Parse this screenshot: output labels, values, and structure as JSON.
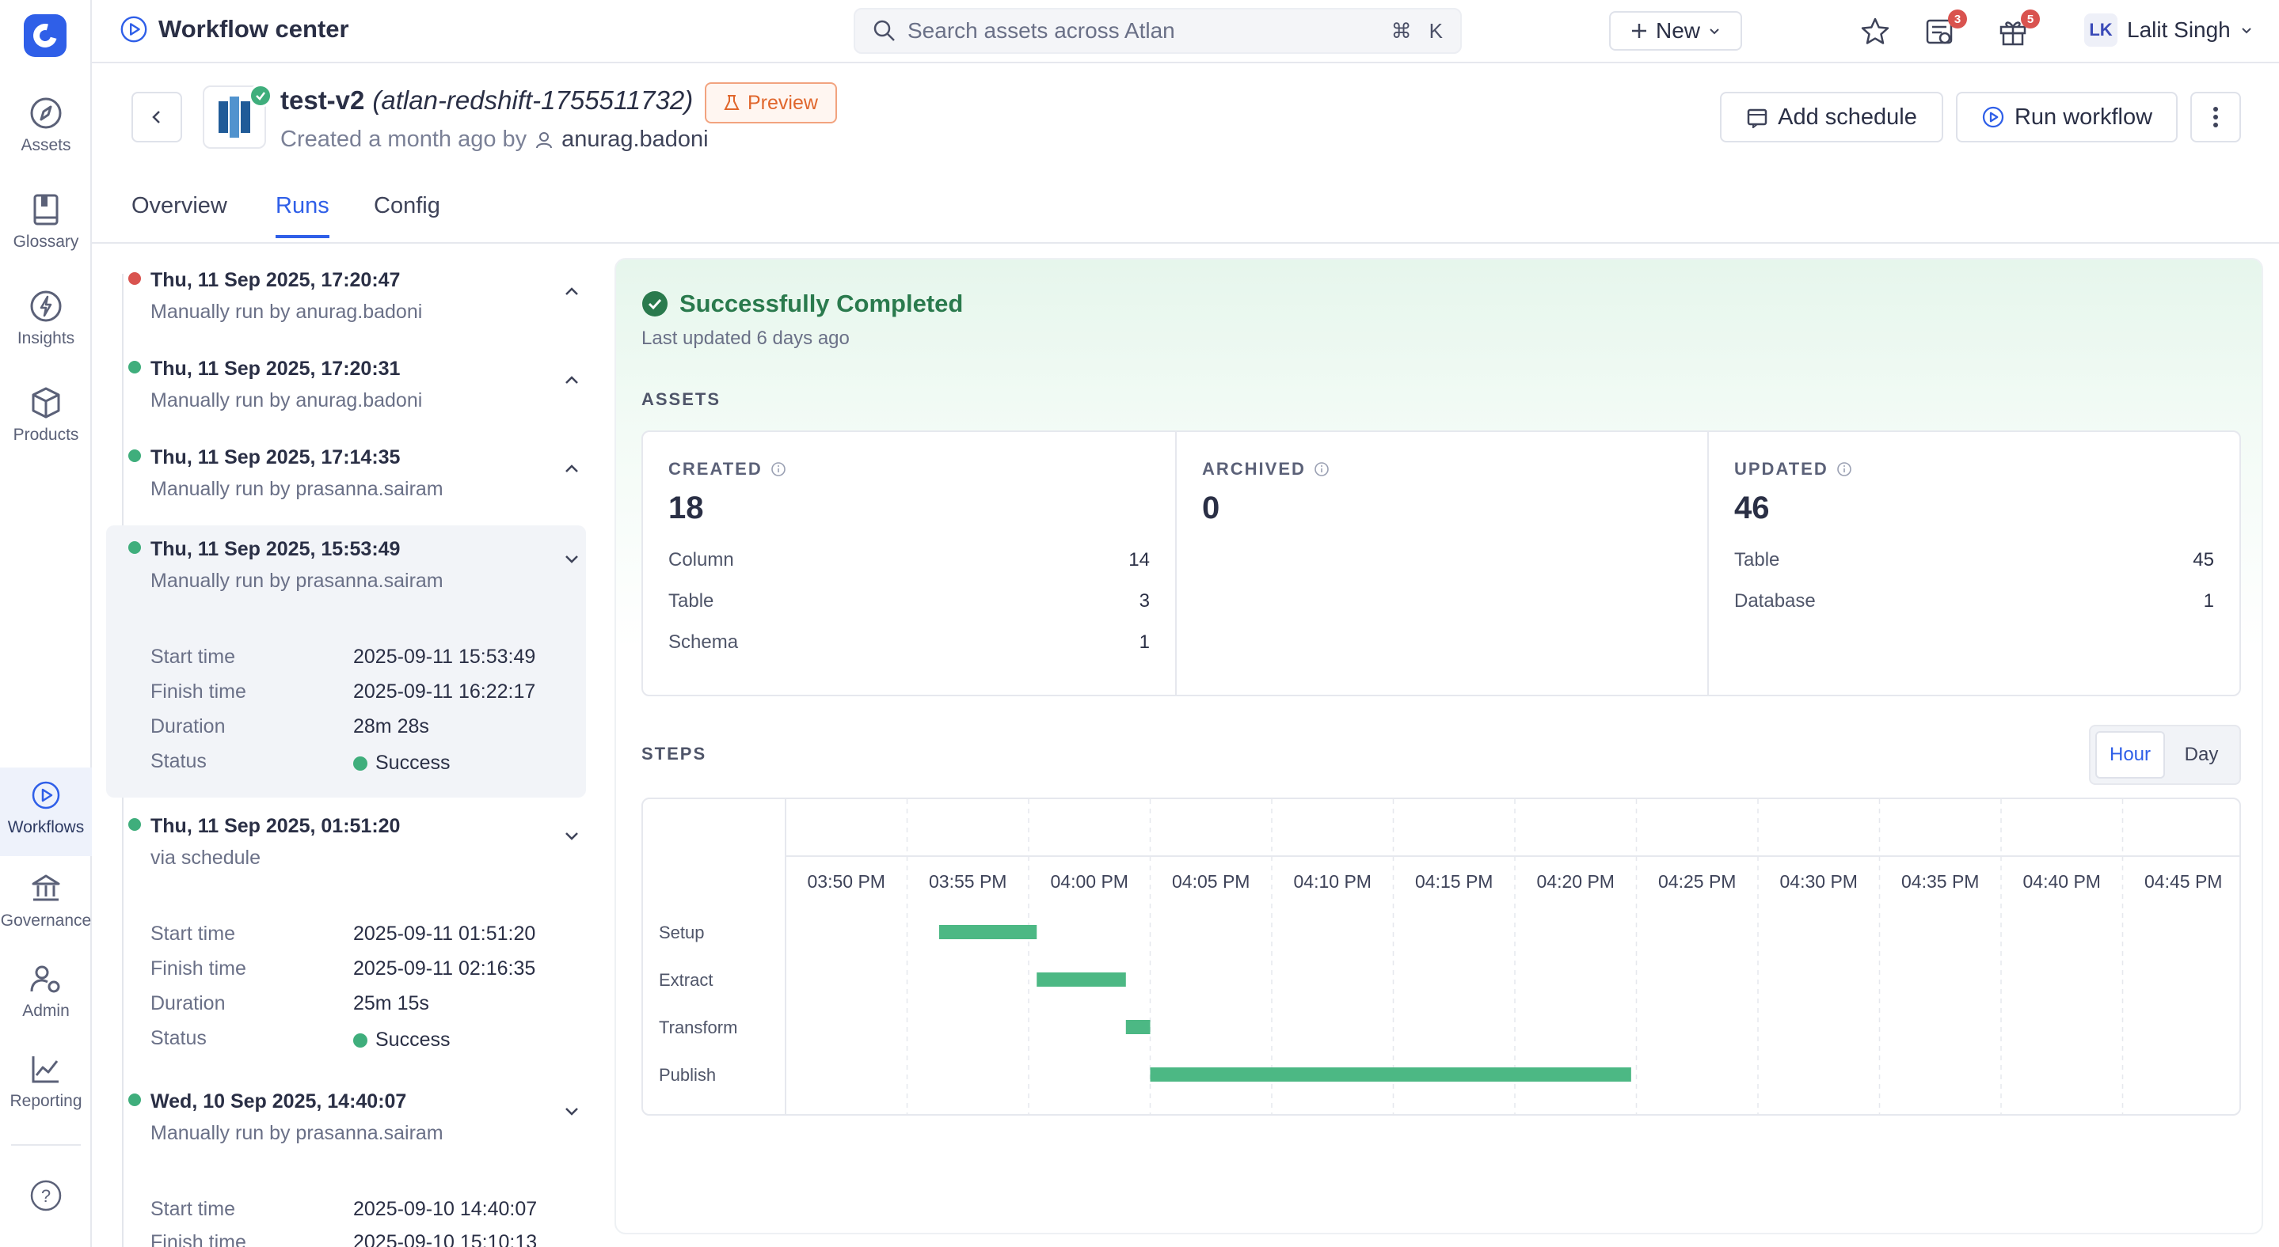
{
  "topbar": {
    "title": "Workflow center",
    "search_placeholder": "Search assets across Atlan",
    "shortcut_cmd": "⌘",
    "shortcut_key": "K",
    "new_label": "New",
    "tasks_badge": "3",
    "whats_new_badge": "5",
    "user_initials": "LK",
    "user_name": "Lalit Singh"
  },
  "rail": {
    "items": [
      {
        "label": "Assets",
        "icon": "compass-icon"
      },
      {
        "label": "Glossary",
        "icon": "book-icon"
      },
      {
        "label": "Insights",
        "icon": "bolt-icon"
      },
      {
        "label": "Products",
        "icon": "cube-icon"
      },
      {
        "label": "Workflows",
        "icon": "play-icon"
      },
      {
        "label": "Governance",
        "icon": "bank-icon"
      },
      {
        "label": "Admin",
        "icon": "users-gear-icon"
      },
      {
        "label": "Reporting",
        "icon": "chart-line-icon"
      }
    ],
    "help": "?"
  },
  "workflow": {
    "name": "test-v2",
    "qualified": "(atlan-redshift-1755511732)",
    "preview_label": "Preview",
    "created_text": "Created a month ago by",
    "creator": "anurag.badoni",
    "add_schedule_label": "Add schedule",
    "run_label": "Run workflow"
  },
  "tabs": [
    "Overview",
    "Runs",
    "Config"
  ],
  "runs": [
    {
      "title": "Thu, 11 Sep 2025, 17:20:47",
      "subtitle": "Manually run by anurag.badoni",
      "status_color": "#d9534f",
      "expanded": false
    },
    {
      "title": "Thu, 11 Sep 2025, 17:20:31",
      "subtitle": "Manually run by anurag.badoni",
      "status_color": "#3fae7c",
      "expanded": false
    },
    {
      "title": "Thu, 11 Sep 2025, 17:14:35",
      "subtitle": "Manually run by prasanna.sairam",
      "status_color": "#3fae7c",
      "expanded": false
    },
    {
      "title": "Thu, 11 Sep 2025, 15:53:49",
      "subtitle": "Manually run by prasanna.sairam",
      "status_color": "#3fae7c",
      "expanded": true,
      "start_label": "Start time",
      "start": "2025-09-11 15:53:49",
      "finish_label": "Finish time",
      "finish": "2025-09-11 16:22:17",
      "duration_label": "Duration",
      "duration": "28m 28s",
      "status_label": "Status",
      "status": "Success"
    },
    {
      "title": "Thu, 11 Sep 2025, 01:51:20",
      "subtitle": "via schedule",
      "status_color": "#3fae7c",
      "expanded": true,
      "start_label": "Start time",
      "start": "2025-09-11 01:51:20",
      "finish_label": "Finish time",
      "finish": "2025-09-11 02:16:35",
      "duration_label": "Duration",
      "duration": "25m 15s",
      "status_label": "Status",
      "status": "Success"
    },
    {
      "title": "Wed, 10 Sep 2025, 14:40:07",
      "subtitle": "Manually run by prasanna.sairam",
      "status_color": "#3fae7c",
      "expanded": true,
      "start_label": "Start time",
      "start": "2025-09-10 14:40:07",
      "finish_label": "Finish time",
      "finish": "2025-09-10 15:10:13"
    }
  ],
  "detail": {
    "status_title": "Successfully Completed",
    "last_updated": "Last updated 6 days ago",
    "assets_label": "ASSETS",
    "assets": [
      {
        "label": "CREATED",
        "total": "18",
        "rows": [
          {
            "k": "Column",
            "v": "14"
          },
          {
            "k": "Table",
            "v": "3"
          },
          {
            "k": "Schema",
            "v": "1"
          }
        ]
      },
      {
        "label": "ARCHIVED",
        "total": "0",
        "rows": []
      },
      {
        "label": "UPDATED",
        "total": "46",
        "rows": [
          {
            "k": "Table",
            "v": "45"
          },
          {
            "k": "Database",
            "v": "1"
          }
        ]
      }
    ],
    "steps_label": "STEPS",
    "toggle": {
      "hour": "Hour",
      "day": "Day",
      "selected": "Hour"
    }
  },
  "chart_data": {
    "type": "gantt",
    "x_ticks": [
      "03:50 PM",
      "03:55 PM",
      "04:00 PM",
      "04:05 PM",
      "04:10 PM",
      "04:15 PM",
      "04:20 PM",
      "04:25 PM",
      "04:30 PM",
      "04:35 PM",
      "04:40 PM",
      "04:45 PM"
    ],
    "tasks": [
      {
        "name": "Setup",
        "start": "15:53:49",
        "end": "15:57:50"
      },
      {
        "name": "Extract",
        "start": "15:57:50",
        "end": "16:01:30"
      },
      {
        "name": "Transform",
        "start": "16:01:30",
        "end": "16:02:30"
      },
      {
        "name": "Publish",
        "start": "16:02:30",
        "end": "16:22:17"
      }
    ],
    "bar_color": "#4cb884"
  }
}
